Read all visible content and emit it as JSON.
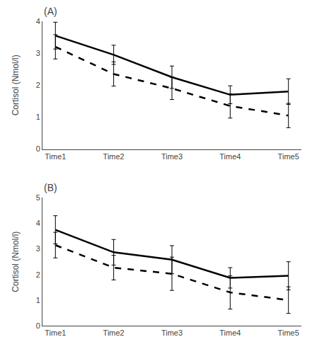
{
  "chart_data": [
    {
      "type": "line",
      "title": "(A)",
      "ylabel": "Cortisol (Nmol/l)",
      "categories": [
        "Time1",
        "Time2",
        "Time3",
        "Time4",
        "Time5"
      ],
      "series": [
        {
          "color": "#000000",
          "line_style": "solid",
          "values": [
            3.55,
            2.95,
            2.25,
            1.7,
            1.8
          ],
          "errors": [
            0.42,
            0.3,
            0.35,
            0.28,
            0.4
          ]
        },
        {
          "color": "#000000",
          "line_style": "dashed",
          "values": [
            3.2,
            2.35,
            1.9,
            1.35,
            1.05
          ],
          "errors": [
            0.38,
            0.38,
            0.35,
            0.38,
            0.38
          ]
        }
      ],
      "ylim": [
        0,
        4
      ],
      "yticks": [
        0,
        1,
        2,
        3,
        4
      ],
      "grid": false
    },
    {
      "type": "line",
      "title": "(B)",
      "ylabel": "Cortisol (Nmol/l)",
      "categories": [
        "Time1",
        "Time2",
        "Time3",
        "Time4",
        "Time5"
      ],
      "series": [
        {
          "color": "#000000",
          "line_style": "solid",
          "values": [
            3.75,
            2.87,
            2.58,
            1.87,
            1.95
          ],
          "errors": [
            0.55,
            0.5,
            0.55,
            0.4,
            0.55
          ]
        },
        {
          "color": "#000000",
          "line_style": "dashed",
          "values": [
            3.15,
            2.27,
            2.03,
            1.3,
            1.0
          ],
          "errors": [
            0.5,
            0.48,
            0.65,
            0.65,
            0.52
          ]
        }
      ],
      "ylim": [
        0,
        5
      ],
      "yticks": [
        0,
        1,
        2,
        3,
        4,
        5
      ],
      "grid": false
    }
  ]
}
